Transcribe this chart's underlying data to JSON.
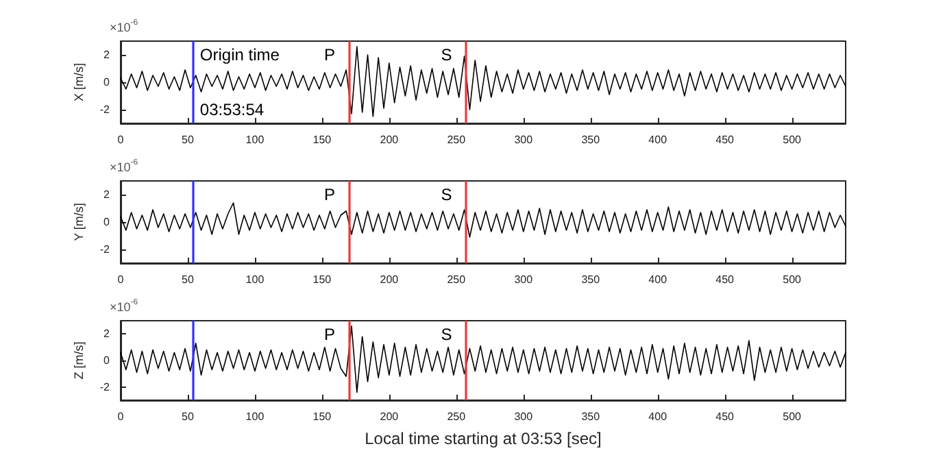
{
  "chart_data": [
    {
      "type": "line",
      "ylabel": "X [m/s]",
      "xlim": [
        0,
        540
      ],
      "xticks": [
        0,
        50,
        100,
        150,
        200,
        250,
        300,
        350,
        400,
        450,
        500
      ],
      "ylim": [
        -3,
        3
      ],
      "yticks": [
        -2,
        0,
        2
      ],
      "grid": false,
      "marker": "none",
      "line_style": "solid",
      "x": [
        0,
        4,
        8,
        12,
        16,
        20,
        24,
        28,
        32,
        36,
        40,
        44,
        48,
        52,
        56,
        60,
        64,
        68,
        72,
        76,
        80,
        84,
        88,
        92,
        96,
        100,
        104,
        108,
        112,
        116,
        120,
        124,
        128,
        132,
        136,
        140,
        144,
        148,
        152,
        156,
        160,
        164,
        168,
        172,
        176,
        180,
        184,
        188,
        192,
        196,
        200,
        204,
        208,
        212,
        216,
        220,
        224,
        228,
        232,
        236,
        240,
        244,
        248,
        252,
        256,
        260,
        264,
        268,
        272,
        276,
        280,
        284,
        288,
        292,
        296,
        300,
        304,
        308,
        312,
        316,
        320,
        324,
        328,
        332,
        336,
        340,
        344,
        348,
        352,
        356,
        360,
        364,
        368,
        372,
        376,
        380,
        384,
        388,
        392,
        396,
        400,
        404,
        408,
        412,
        416,
        420,
        424,
        428,
        432,
        436,
        440,
        444,
        448,
        452,
        456,
        460,
        464,
        468,
        472,
        476,
        480,
        484,
        488,
        492,
        496,
        500,
        504,
        508,
        512,
        516,
        520,
        524,
        528,
        532,
        536,
        540
      ],
      "series": [
        {
          "color": "#000000",
          "values": [
            0.3,
            -0.5,
            0.6,
            -0.4,
            0.8,
            -0.6,
            0.5,
            -0.3,
            0.7,
            -0.5,
            0.4,
            -0.6,
            0.9,
            -0.4,
            0.5,
            -0.7,
            0.6,
            -0.3,
            0.5,
            -0.5,
            0.8,
            -0.6,
            0.4,
            -0.5,
            0.6,
            -0.4,
            0.7,
            -0.6,
            0.5,
            -0.3,
            0.6,
            -0.5,
            0.8,
            -0.4,
            0.5,
            -0.6,
            0.4,
            -0.5,
            0.7,
            -0.4,
            0.6,
            -0.3,
            0.9,
            -2.3,
            2.6,
            -2.2,
            2.0,
            -2.5,
            1.8,
            -1.9,
            1.4,
            -1.5,
            1.1,
            -1.0,
            1.2,
            -1.3,
            0.9,
            -0.8,
            1.0,
            -1.1,
            0.8,
            -0.9,
            1.0,
            -1.1,
            1.9,
            -2.0,
            1.6,
            -1.4,
            1.2,
            -1.1,
            0.8,
            -0.7,
            0.6,
            -0.8,
            0.9,
            -0.5,
            0.7,
            -0.6,
            0.8,
            -0.7,
            0.6,
            -0.5,
            0.7,
            -0.8,
            0.6,
            -0.6,
            0.9,
            -0.5,
            0.7,
            -0.6,
            0.8,
            -0.9,
            0.6,
            -0.5,
            0.7,
            -0.7,
            0.6,
            -0.5,
            0.8,
            -0.6,
            0.7,
            -0.5,
            0.9,
            -0.6,
            0.6,
            -1.0,
            0.7,
            -0.6,
            0.8,
            -0.5,
            0.6,
            -0.7,
            0.7,
            -0.5,
            0.6,
            -0.6,
            0.5,
            -0.7,
            0.7,
            -0.5,
            0.6,
            -0.5,
            0.7,
            -0.6,
            0.5,
            -0.5,
            0.6,
            -0.4,
            0.7,
            -0.5,
            0.6,
            -0.5,
            0.6,
            -0.4,
            0.5,
            -0.3
          ]
        }
      ],
      "ref_lines": [
        {
          "axis": "x",
          "value": 54,
          "color": "#3333ff",
          "label": "Origin time"
        },
        {
          "axis": "x",
          "value": 170,
          "color": "#e83b3b",
          "label": "P"
        },
        {
          "axis": "x",
          "value": 257,
          "color": "#e83b3b",
          "label": "S"
        }
      ],
      "annotations": [
        "×10$^{-6}$",
        "03:53:54"
      ]
    },
    {
      "type": "line",
      "ylabel": "Y [m/s]",
      "xlim": [
        0,
        540
      ],
      "xticks": [
        0,
        50,
        100,
        150,
        200,
        250,
        300,
        350,
        400,
        450,
        500
      ],
      "ylim": [
        -3,
        3
      ],
      "yticks": [
        -2,
        0,
        2
      ],
      "grid": false,
      "marker": "none",
      "line_style": "solid",
      "x": [
        0,
        4,
        8,
        12,
        16,
        20,
        24,
        28,
        32,
        36,
        40,
        44,
        48,
        52,
        56,
        60,
        64,
        68,
        72,
        76,
        80,
        84,
        88,
        92,
        96,
        100,
        104,
        108,
        112,
        116,
        120,
        124,
        128,
        132,
        136,
        140,
        144,
        148,
        152,
        156,
        160,
        164,
        168,
        172,
        176,
        180,
        184,
        188,
        192,
        196,
        200,
        204,
        208,
        212,
        216,
        220,
        224,
        228,
        232,
        236,
        240,
        244,
        248,
        252,
        256,
        260,
        264,
        268,
        272,
        276,
        280,
        284,
        288,
        292,
        296,
        300,
        304,
        308,
        312,
        316,
        320,
        324,
        328,
        332,
        336,
        340,
        344,
        348,
        352,
        356,
        360,
        364,
        368,
        372,
        376,
        380,
        384,
        388,
        392,
        396,
        400,
        404,
        408,
        412,
        416,
        420,
        424,
        428,
        432,
        436,
        440,
        444,
        448,
        452,
        456,
        460,
        464,
        468,
        472,
        476,
        480,
        484,
        488,
        492,
        496,
        500,
        504,
        508,
        512,
        516,
        520,
        524,
        528,
        532,
        536,
        540
      ],
      "series": [
        {
          "color": "#000000",
          "values": [
            0.4,
            -0.6,
            0.7,
            -0.5,
            0.5,
            -0.6,
            0.9,
            -0.4,
            0.6,
            -0.7,
            0.5,
            -0.5,
            0.6,
            -0.4,
            0.7,
            -0.6,
            0.5,
            -0.9,
            0.6,
            -0.5,
            0.6,
            1.4,
            -0.9,
            0.5,
            -0.6,
            0.7,
            -0.5,
            0.6,
            -0.4,
            0.5,
            -0.7,
            0.6,
            -0.5,
            0.7,
            -0.4,
            0.6,
            -0.6,
            0.5,
            -0.5,
            0.8,
            -0.4,
            0.5,
            0.8,
            -0.9,
            0.7,
            -0.8,
            0.8,
            -0.7,
            0.6,
            -0.8,
            0.7,
            -0.6,
            0.8,
            -0.6,
            0.7,
            -0.7,
            0.6,
            -0.5,
            0.7,
            -0.6,
            0.8,
            -0.5,
            0.6,
            -0.6,
            0.9,
            -1.1,
            0.7,
            -0.6,
            0.8,
            -0.7,
            0.6,
            -0.8,
            0.7,
            -0.6,
            0.9,
            -0.7,
            0.8,
            -0.6,
            1.0,
            -0.9,
            0.9,
            -0.7,
            0.8,
            -0.6,
            0.7,
            -0.8,
            0.9,
            -0.7,
            0.6,
            -0.6,
            0.8,
            -0.7,
            0.7,
            -0.8,
            0.6,
            -0.7,
            0.8,
            -0.6,
            0.9,
            -0.7,
            0.7,
            -0.6,
            1.1,
            -0.7,
            0.8,
            -0.6,
            0.9,
            -0.8,
            0.7,
            -0.9,
            0.8,
            -0.6,
            0.9,
            -0.7,
            0.7,
            -0.8,
            0.8,
            -0.6,
            0.9,
            -0.7,
            0.8,
            -0.9,
            0.7,
            -0.6,
            0.8,
            -0.7,
            0.6,
            -0.8,
            0.7,
            -0.6,
            0.8,
            -0.7,
            0.7,
            -0.4,
            0.5,
            -0.3
          ]
        }
      ],
      "ref_lines": [
        {
          "axis": "x",
          "value": 54,
          "color": "#3333ff"
        },
        {
          "axis": "x",
          "value": 170,
          "color": "#e83b3b",
          "label": "P"
        },
        {
          "axis": "x",
          "value": 257,
          "color": "#e83b3b",
          "label": "S"
        }
      ],
      "annotations": [
        "×10$^{-6}$"
      ]
    },
    {
      "type": "line",
      "xlabel": "Local time starting at 03:53 [sec]",
      "ylabel": "Z [m/s]",
      "xlim": [
        0,
        540
      ],
      "xticks": [
        0,
        50,
        100,
        150,
        200,
        250,
        300,
        350,
        400,
        450,
        500
      ],
      "ylim": [
        -3,
        3
      ],
      "yticks": [
        -2,
        0,
        2
      ],
      "grid": false,
      "marker": "none",
      "line_style": "solid",
      "x": [
        0,
        4,
        8,
        12,
        16,
        20,
        24,
        28,
        32,
        36,
        40,
        44,
        48,
        52,
        56,
        60,
        64,
        68,
        72,
        76,
        80,
        84,
        88,
        92,
        96,
        100,
        104,
        108,
        112,
        116,
        120,
        124,
        128,
        132,
        136,
        140,
        144,
        148,
        152,
        156,
        160,
        164,
        168,
        172,
        176,
        180,
        184,
        188,
        192,
        196,
        200,
        204,
        208,
        212,
        216,
        220,
        224,
        228,
        232,
        236,
        240,
        244,
        248,
        252,
        256,
        260,
        264,
        268,
        272,
        276,
        280,
        284,
        288,
        292,
        296,
        300,
        304,
        308,
        312,
        316,
        320,
        324,
        328,
        332,
        336,
        340,
        344,
        348,
        352,
        356,
        360,
        364,
        368,
        372,
        376,
        380,
        384,
        388,
        392,
        396,
        400,
        404,
        408,
        412,
        416,
        420,
        424,
        428,
        432,
        436,
        440,
        444,
        448,
        452,
        456,
        460,
        464,
        468,
        472,
        476,
        480,
        484,
        488,
        492,
        496,
        500,
        504,
        508,
        512,
        516,
        520,
        524,
        528,
        532,
        536,
        540
      ],
      "series": [
        {
          "color": "#000000",
          "values": [
            0.6,
            -0.7,
            0.8,
            -0.9,
            0.7,
            -1.0,
            0.8,
            -0.6,
            0.7,
            -0.8,
            0.6,
            -0.7,
            0.9,
            -0.8,
            1.3,
            -1.1,
            0.8,
            -0.7,
            0.6,
            -0.8,
            0.7,
            -0.6,
            0.8,
            -0.7,
            0.6,
            -0.8,
            0.7,
            -0.6,
            0.8,
            -0.7,
            0.6,
            -0.7,
            0.8,
            -0.6,
            0.7,
            -0.8,
            0.6,
            -0.7,
            1.0,
            -0.8,
            0.9,
            -0.6,
            -1.2,
            2.6,
            -2.4,
            1.8,
            -1.6,
            1.4,
            -1.3,
            1.2,
            -1.1,
            1.3,
            -1.2,
            1.0,
            -1.1,
            1.2,
            -0.9,
            0.9,
            -0.8,
            0.7,
            -0.9,
            1.0,
            -1.1,
            0.8,
            -1.0,
            0.9,
            -0.8,
            1.1,
            -0.9,
            0.8,
            -1.0,
            0.9,
            -0.8,
            1.0,
            -0.9,
            0.8,
            -1.0,
            0.9,
            -0.8,
            1.0,
            -0.9,
            0.8,
            -1.0,
            0.9,
            -0.9,
            1.1,
            -0.8,
            0.9,
            -1.0,
            0.8,
            -0.9,
            1.0,
            -0.8,
            0.9,
            -1.1,
            0.8,
            -0.9,
            1.0,
            -1.0,
            1.2,
            -0.9,
            0.9,
            -1.4,
            1.1,
            -1.0,
            1.3,
            -0.9,
            1.0,
            -1.1,
            0.9,
            -1.0,
            1.2,
            -0.9,
            1.0,
            -0.8,
            1.1,
            -1.0,
            1.5,
            -1.5,
            1.0,
            -0.9,
            0.8,
            -0.9,
            1.0,
            -0.8,
            0.9,
            -0.7,
            0.8,
            -0.6,
            0.7,
            -0.5,
            0.6,
            -0.4,
            0.7,
            -0.5,
            0.6
          ]
        }
      ],
      "ref_lines": [
        {
          "axis": "x",
          "value": 54,
          "color": "#3333ff"
        },
        {
          "axis": "x",
          "value": 170,
          "color": "#e83b3b",
          "label": "P"
        },
        {
          "axis": "x",
          "value": 257,
          "color": "#e83b3b",
          "label": "S"
        }
      ],
      "annotations": [
        "×10$^{-6}$"
      ]
    }
  ]
}
